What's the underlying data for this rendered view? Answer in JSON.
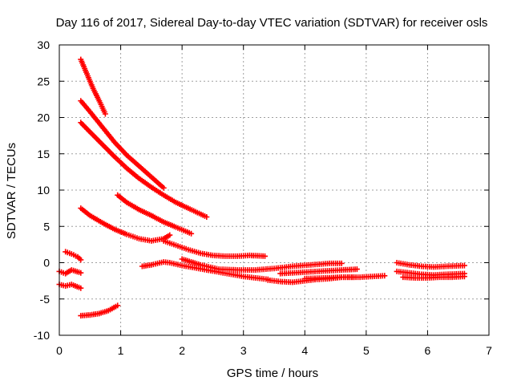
{
  "chart_data": {
    "type": "scatter",
    "title": "Day 116 of 2017, Sidereal Day-to-day VTEC variation (SDTVAR) for receiver osls",
    "xlabel": "GPS time / hours",
    "ylabel": "SDTVAR / TECUs",
    "xlim": [
      0,
      7
    ],
    "ylim": [
      -10,
      30
    ],
    "xticks": [
      "0",
      "1",
      "2",
      "3",
      "4",
      "5",
      "6",
      "7"
    ],
    "yticks": [
      "-10",
      "-5",
      "0",
      "5",
      "10",
      "15",
      "20",
      "25",
      "30"
    ],
    "grid": true,
    "marker": "plus",
    "color": "#ff0000",
    "series": [
      {
        "x": [
          0.35,
          0.45,
          0.55,
          0.65,
          0.75
        ],
        "y": [
          28.0,
          26.0,
          24.0,
          22.3,
          20.5
        ]
      },
      {
        "x": [
          0.35,
          0.5,
          0.7,
          0.9,
          1.1,
          1.3,
          1.5,
          1.7
        ],
        "y": [
          22.3,
          20.8,
          18.7,
          16.6,
          14.8,
          13.3,
          11.8,
          10.3
        ]
      },
      {
        "x": [
          0.35,
          0.5,
          0.7,
          0.9,
          1.1,
          1.3,
          1.5,
          1.7,
          1.9,
          2.1,
          2.4
        ],
        "y": [
          19.3,
          18.0,
          16.3,
          14.6,
          13.0,
          11.6,
          10.4,
          9.3,
          8.3,
          7.5,
          6.3
        ]
      },
      {
        "x": [
          0.95,
          1.1,
          1.3,
          1.5,
          1.7,
          1.9,
          2.15
        ],
        "y": [
          9.3,
          8.3,
          7.3,
          6.5,
          5.6,
          4.9,
          4.0
        ]
      },
      {
        "x": [
          0.35,
          0.5,
          0.7,
          0.9,
          1.1,
          1.3,
          1.5,
          1.7,
          1.8
        ],
        "y": [
          7.5,
          6.5,
          5.5,
          4.6,
          3.9,
          3.3,
          3.0,
          3.3,
          3.8
        ]
      },
      {
        "x": [
          1.7,
          1.9,
          2.1,
          2.3,
          2.5,
          2.7,
          2.9,
          3.1,
          3.35
        ],
        "y": [
          3.0,
          2.4,
          1.8,
          1.3,
          1.0,
          0.9,
          0.9,
          1.0,
          0.9
        ]
      },
      {
        "x": [
          0.1,
          0.2,
          0.3,
          0.35
        ],
        "y": [
          1.5,
          1.2,
          0.8,
          0.4
        ]
      },
      {
        "x": [
          0.0,
          0.1,
          0.2,
          0.35
        ],
        "y": [
          -1.2,
          -1.5,
          -1.0,
          -1.4
        ]
      },
      {
        "x": [
          0.0,
          0.1,
          0.2,
          0.35
        ],
        "y": [
          -3.0,
          -3.2,
          -3.0,
          -3.5
        ]
      },
      {
        "x": [
          0.35,
          0.5,
          0.65,
          0.8,
          0.95
        ],
        "y": [
          -7.3,
          -7.2,
          -7.0,
          -6.6,
          -5.9
        ]
      },
      {
        "x": [
          1.35,
          1.5,
          1.6,
          1.7,
          1.8,
          2.0,
          2.2,
          2.4,
          2.6,
          2.8,
          3.0,
          3.2,
          3.4
        ],
        "y": [
          -0.5,
          -0.3,
          -0.1,
          0.1,
          0.0,
          -0.4,
          -0.7,
          -1.0,
          -1.3,
          -1.6,
          -1.9,
          -2.1,
          -2.3
        ]
      },
      {
        "x": [
          2.0,
          2.3,
          2.6,
          2.9,
          3.2,
          3.5,
          3.8,
          4.1,
          4.4,
          4.6
        ],
        "y": [
          0.5,
          -0.3,
          -0.9,
          -1.0,
          -1.0,
          -0.8,
          -0.5,
          -0.3,
          -0.1,
          -0.1
        ]
      },
      {
        "x": [
          3.4,
          3.6,
          3.8,
          4.0,
          4.2,
          4.4,
          4.6,
          4.8
        ],
        "y": [
          -2.4,
          -2.6,
          -2.7,
          -2.5,
          -2.3,
          -2.2,
          -2.0,
          -2.0
        ]
      },
      {
        "x": [
          3.6,
          3.8,
          4.0,
          4.2,
          4.4,
          4.6,
          4.85
        ],
        "y": [
          -1.5,
          -1.4,
          -1.3,
          -1.2,
          -1.1,
          -1.0,
          -0.9
        ]
      },
      {
        "x": [
          4.0,
          4.3,
          4.6,
          4.9,
          5.1,
          5.3
        ],
        "y": [
          -2.2,
          -2.1,
          -2.0,
          -2.0,
          -1.9,
          -1.8
        ]
      },
      {
        "x": [
          5.5,
          5.7,
          5.9,
          6.1,
          6.3,
          6.6
        ],
        "y": [
          0.0,
          -0.3,
          -0.5,
          -0.6,
          -0.5,
          -0.4
        ]
      },
      {
        "x": [
          5.5,
          5.7,
          5.9,
          6.1,
          6.3,
          6.6
        ],
        "y": [
          -1.2,
          -1.4,
          -1.6,
          -1.7,
          -1.6,
          -1.5
        ]
      },
      {
        "x": [
          5.6,
          5.8,
          6.0,
          6.2,
          6.4,
          6.6
        ],
        "y": [
          -2.0,
          -2.1,
          -2.1,
          -2.0,
          -2.0,
          -1.9
        ]
      }
    ]
  }
}
